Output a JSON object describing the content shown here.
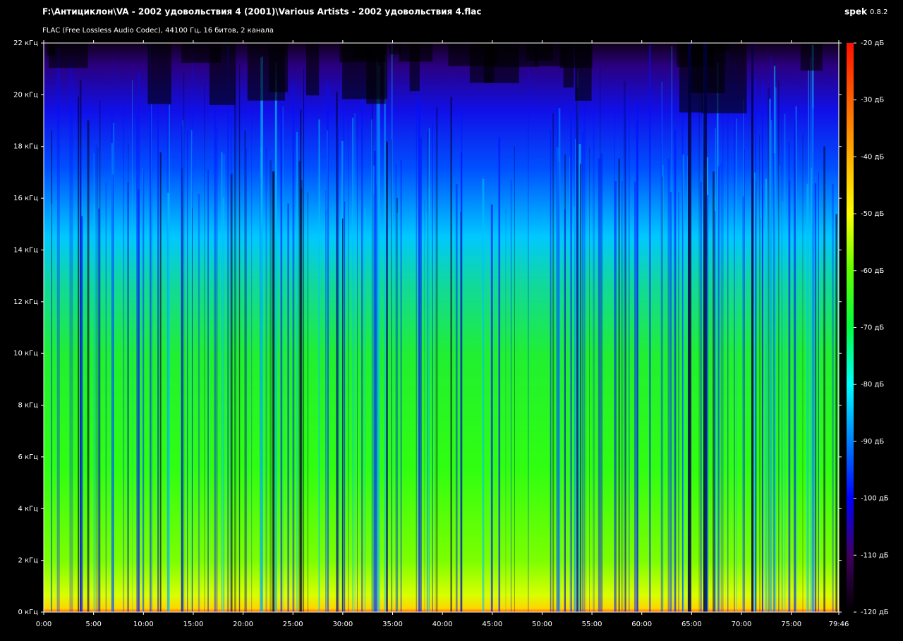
{
  "chart_data": {
    "type": "spectrogram",
    "title": "F:\\Антициклон\\VA - 2002 удовольствия 4 (2001)\\Various Artists - 2002 удовольствия 4.flac",
    "subtitle": "FLAC (Free Lossless Audio Codec), 44100 Гц, 16 битов, 2 канала",
    "app_name": "spek",
    "app_version": "0.8.2",
    "ylim": [
      0,
      22
    ],
    "yticks": [
      {
        "value": 0,
        "label": "0 кГц"
      },
      {
        "value": 2,
        "label": "2 кГц"
      },
      {
        "value": 4,
        "label": "4 кГц"
      },
      {
        "value": 6,
        "label": "6 кГц"
      },
      {
        "value": 8,
        "label": "8 кГц"
      },
      {
        "value": 10,
        "label": "10 кГц"
      },
      {
        "value": 12,
        "label": "12 кГц"
      },
      {
        "value": 14,
        "label": "14 кГц"
      },
      {
        "value": 16,
        "label": "16 кГц"
      },
      {
        "value": 18,
        "label": "18 кГц"
      },
      {
        "value": 20,
        "label": "20 кГц"
      },
      {
        "value": 22,
        "label": "22 кГц"
      }
    ],
    "xlim": [
      0,
      4786
    ],
    "xticks": [
      {
        "value": 0,
        "label": "0:00"
      },
      {
        "value": 300,
        "label": "5:00"
      },
      {
        "value": 600,
        "label": "10:00"
      },
      {
        "value": 900,
        "label": "15:00"
      },
      {
        "value": 1200,
        "label": "20:00"
      },
      {
        "value": 1500,
        "label": "25:00"
      },
      {
        "value": 1800,
        "label": "30:00"
      },
      {
        "value": 2100,
        "label": "35:00"
      },
      {
        "value": 2400,
        "label": "40:00"
      },
      {
        "value": 2700,
        "label": "45:00"
      },
      {
        "value": 3000,
        "label": "50:00"
      },
      {
        "value": 3300,
        "label": "55:00"
      },
      {
        "value": 3600,
        "label": "60:00"
      },
      {
        "value": 3900,
        "label": "65:00"
      },
      {
        "value": 4200,
        "label": "70:00"
      },
      {
        "value": 4500,
        "label": "75:00"
      },
      {
        "value": 4786,
        "label": "79:46"
      }
    ],
    "colorbar": {
      "lim": [
        -120,
        -20
      ],
      "ticks": [
        {
          "value": -20,
          "label": "-20 дБ"
        },
        {
          "value": -30,
          "label": "-30 дБ"
        },
        {
          "value": -40,
          "label": "-40 дБ"
        },
        {
          "value": -50,
          "label": "-50 дБ"
        },
        {
          "value": -60,
          "label": "-60 дБ"
        },
        {
          "value": -70,
          "label": "-70 дБ"
        },
        {
          "value": -80,
          "label": "-80 дБ"
        },
        {
          "value": -90,
          "label": "-90 дБ"
        },
        {
          "value": -100,
          "label": "-100 дБ"
        },
        {
          "value": -110,
          "label": "-110 дБ"
        },
        {
          "value": -120,
          "label": "-120 дБ"
        }
      ]
    }
  }
}
